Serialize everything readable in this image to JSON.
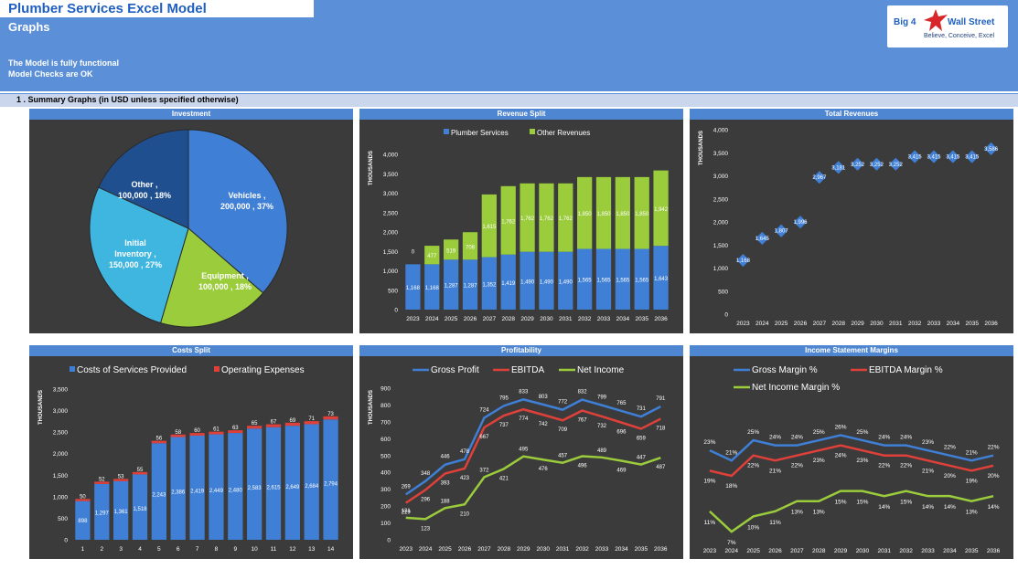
{
  "header": {
    "title": "Plumber Services Excel Model",
    "subtitle": "Graphs",
    "status_line1": "The Model is fully functional",
    "status_line2": "Model Checks are OK",
    "logo_text_left": "Big 4",
    "logo_text_right": "Wall Street",
    "logo_tagline": "Believe, Conceive, Excel"
  },
  "section": {
    "label": "1 .  Summary Graphs (in USD unless specified otherwise)"
  },
  "colors": {
    "blue": "#3f7fd6",
    "green": "#9bcc3c",
    "red": "#e0403a",
    "cyan": "#3fb6e0",
    "navy": "#1f4f8f",
    "panel_bg": "#3b3b3b"
  },
  "chart_data": [
    {
      "id": "investment",
      "type": "pie",
      "title": "Investment",
      "slices": [
        {
          "name": "Vehicles",
          "value": 200000,
          "pct": "37%",
          "label_line1": "Vehicles ,",
          "label_line2": "200,000 , 37%"
        },
        {
          "name": "Equipment",
          "value": 100000,
          "pct": "18%",
          "label_line1": "Equipment ,",
          "label_line2": "100,000 , 18%"
        },
        {
          "name": "Initial Inventory",
          "value": 150000,
          "pct": "27%",
          "label_line1": "Initial",
          "label_line2": "Inventory ,",
          "label_line3": "150,000 , 27%"
        },
        {
          "name": "Other",
          "value": 100000,
          "pct": "18%",
          "label_line1": "Other ,",
          "label_line2": "100,000 , 18%"
        }
      ]
    },
    {
      "id": "revenue_split",
      "type": "bar",
      "stacked": true,
      "title": "Revenue Split",
      "ylabel": "THOUSANDS",
      "ylim": [
        0,
        4000
      ],
      "yticks": [
        0,
        500,
        1000,
        1500,
        2000,
        2500,
        3000,
        3500,
        4000
      ],
      "categories": [
        "2023",
        "2024",
        "2025",
        "2026",
        "2027",
        "2028",
        "2029",
        "2030",
        "2031",
        "2032",
        "2033",
        "2034",
        "2035",
        "2036"
      ],
      "series": [
        {
          "name": "Plumber Services",
          "values": [
            1168,
            1168,
            1287,
            1287,
            1352,
            1419,
            1490,
            1490,
            1490,
            1565,
            1565,
            1565,
            1565,
            1643
          ]
        },
        {
          "name": "Other Revenues",
          "values": [
            0,
            477,
            519,
            708,
            1615,
            1762,
            1762,
            1762,
            1762,
            1850,
            1850,
            1850,
            1850,
            1942
          ]
        }
      ]
    },
    {
      "id": "total_revenues",
      "type": "scatter",
      "title": "Total Revenues",
      "ylabel": "THOUSANDS",
      "ylim": [
        0,
        4000
      ],
      "yticks": [
        0,
        500,
        1000,
        1500,
        2000,
        2500,
        3000,
        3500,
        4000
      ],
      "categories": [
        "2023",
        "2024",
        "2025",
        "2026",
        "2027",
        "2028",
        "2029",
        "2030",
        "2031",
        "2032",
        "2033",
        "2034",
        "2035",
        "2036"
      ],
      "values": [
        1168,
        1645,
        1807,
        1996,
        2967,
        3181,
        3252,
        3252,
        3252,
        3415,
        3415,
        3415,
        3415,
        3586
      ]
    },
    {
      "id": "costs_split",
      "type": "bar",
      "stacked": true,
      "title": "Costs Split",
      "ylabel": "THOUSANDS",
      "ylim": [
        0,
        3500
      ],
      "yticks": [
        0,
        500,
        1000,
        1500,
        2000,
        2500,
        3000,
        3500
      ],
      "categories": [
        "1",
        "2",
        "3",
        "4",
        "5",
        "6",
        "7",
        "8",
        "9",
        "10",
        "11",
        "12",
        "13",
        "14"
      ],
      "series": [
        {
          "name": "Costs of Services Provided",
          "values": [
            898,
            1297,
            1361,
            1518,
            2243,
            2386,
            2419,
            2449,
            2480,
            2583,
            2615,
            2649,
            2684,
            2794
          ]
        },
        {
          "name": "Operating Expenses",
          "values": [
            50,
            52,
            53,
            55,
            56,
            58,
            60,
            61,
            63,
            65,
            67,
            69,
            71,
            73
          ]
        }
      ]
    },
    {
      "id": "profitability",
      "type": "line",
      "title": "Profitability",
      "ylabel": "THOUSANDS",
      "ylim": [
        0,
        900
      ],
      "yticks": [
        0,
        100,
        200,
        300,
        400,
        500,
        600,
        700,
        800,
        900
      ],
      "categories": [
        "2023",
        "2024",
        "2025",
        "2026",
        "2027",
        "2028",
        "2029",
        "2030",
        "2031",
        "2032",
        "2033",
        "2034",
        "2035",
        "2036"
      ],
      "series": [
        {
          "name": "Gross Profit",
          "values": [
            269,
            348,
            446,
            478,
            724,
            795,
            833,
            803,
            772,
            832,
            799,
            765,
            731,
            791
          ]
        },
        {
          "name": "EBITDA",
          "values": [
            219,
            296,
            393,
            423,
            667,
            737,
            774,
            742,
            709,
            767,
            732,
            696,
            659,
            718
          ]
        },
        {
          "name": "Net Income",
          "values": [
            131,
            123,
            188,
            210,
            372,
            421,
            495,
            476,
            457,
            496,
            489,
            469,
            447,
            487
          ]
        }
      ]
    },
    {
      "id": "income_statement_margins",
      "type": "line",
      "title": "Income Statement Margins",
      "ylim": [
        0,
        0.3
      ],
      "categories": [
        "2023",
        "2024",
        "2025",
        "2026",
        "2027",
        "2028",
        "2029",
        "2030",
        "2031",
        "2032",
        "2033",
        "2034",
        "2035",
        "2036"
      ],
      "series": [
        {
          "name": "Gross Margin %",
          "values": [
            0.23,
            0.21,
            0.25,
            0.24,
            0.24,
            0.25,
            0.26,
            0.25,
            0.24,
            0.24,
            0.23,
            0.22,
            0.21,
            0.22
          ],
          "labels": [
            "23%",
            "21%",
            "25%",
            "24%",
            "24%",
            "25%",
            "26%",
            "25%",
            "24%",
            "24%",
            "23%",
            "22%",
            "21%",
            "22%"
          ]
        },
        {
          "name": "EBITDA Margin %",
          "values": [
            0.19,
            0.18,
            0.22,
            0.21,
            0.22,
            0.23,
            0.24,
            0.23,
            0.22,
            0.22,
            0.21,
            0.2,
            0.19,
            0.2
          ],
          "labels": [
            "19%",
            "18%",
            "22%",
            "21%",
            "22%",
            "23%",
            "24%",
            "23%",
            "22%",
            "22%",
            "21%",
            "20%",
            "19%",
            "20%"
          ]
        },
        {
          "name": "Net Income Margin %",
          "values": [
            0.11,
            0.07,
            0.1,
            0.11,
            0.13,
            0.13,
            0.15,
            0.15,
            0.14,
            0.15,
            0.14,
            0.14,
            0.13,
            0.14
          ],
          "labels": [
            "11%",
            "7%",
            "10%",
            "11%",
            "13%",
            "13%",
            "15%",
            "15%",
            "14%",
            "15%",
            "14%",
            "14%",
            "13%",
            "14%"
          ]
        }
      ]
    }
  ]
}
